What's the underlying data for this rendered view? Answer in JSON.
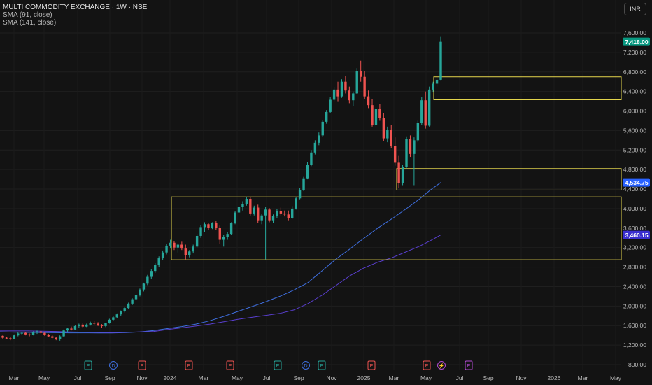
{
  "header": {
    "title": "MULTI COMMODITY EXCHANGE · 1W · NSE",
    "sma1_label": "SMA (91, close)",
    "sma2_label": "SMA (141, close)",
    "currency": "INR"
  },
  "colors": {
    "up": "#26a69a",
    "down": "#ef5350",
    "sma91": "#3f6fe0",
    "sma141": "#5a3fd1",
    "box": "#e3d44c",
    "price_badge": "#089981",
    "sma91_badge": "#2962ff",
    "sma141_badge": "#3a2fd0"
  },
  "chart_data": {
    "type": "candlestick",
    "y_ticks": [
      "7,600.00",
      "7,200.00",
      "6,800.00",
      "6,400.00",
      "6,000.00",
      "5,600.00",
      "5,200.00",
      "4,800.00",
      "4,400.00",
      "4,000.00",
      "3,600.00",
      "3,200.00",
      "2,800.00",
      "2,400.00",
      "2,000.00",
      "1,600.00",
      "1,200.00",
      "800.00"
    ],
    "x_ticks": [
      "Mar",
      "May",
      "Jul",
      "Sep",
      "Nov",
      "2024",
      "Mar",
      "May",
      "Jul",
      "Sep",
      "Nov",
      "2025",
      "Mar",
      "May",
      "Jul",
      "Sep",
      "Nov",
      "2026",
      "Mar",
      "May"
    ],
    "price_labels": [
      {
        "text": "7,418.00",
        "value": 7418,
        "color": "#089981"
      },
      {
        "text": "4,534.75",
        "value": 4534.75,
        "color": "#2962ff"
      },
      {
        "text": "3,460.15",
        "value": 3460.15,
        "color": "#3a2fd0"
      }
    ],
    "boxes": [
      {
        "from": "Jan 2024",
        "to": "Jun 2025",
        "high": 4240,
        "low": 2950
      },
      {
        "from": "Mar 2025",
        "to": "Jun 2025",
        "high": 4820,
        "low": 4380
      },
      {
        "from": "Jun 2025",
        "to": "Jun 2025",
        "high": 6700,
        "low": 6230
      }
    ],
    "event_markers": [
      {
        "label": "E",
        "type": "earnings"
      },
      {
        "label": "D",
        "type": "dividend"
      },
      {
        "label": "E",
        "type": "earnings"
      },
      {
        "label": "E",
        "type": "earnings"
      },
      {
        "label": "E",
        "type": "earnings"
      },
      {
        "label": "E",
        "type": "earnings"
      },
      {
        "label": "D",
        "type": "dividend"
      },
      {
        "label": "E",
        "type": "earnings"
      },
      {
        "label": "E",
        "type": "earnings"
      },
      {
        "label": "E",
        "type": "earnings"
      },
      {
        "label": "⚡",
        "type": "split"
      },
      {
        "label": "E",
        "type": "earnings"
      }
    ],
    "candles": [
      [
        1390,
        1400,
        1330,
        1350
      ],
      [
        1350,
        1370,
        1320,
        1340
      ],
      [
        1340,
        1360,
        1300,
        1330
      ],
      [
        1330,
        1420,
        1320,
        1400
      ],
      [
        1400,
        1460,
        1380,
        1440
      ],
      [
        1440,
        1470,
        1410,
        1450
      ],
      [
        1450,
        1470,
        1400,
        1420
      ],
      [
        1420,
        1440,
        1380,
        1410
      ],
      [
        1410,
        1480,
        1400,
        1460
      ],
      [
        1460,
        1500,
        1430,
        1480
      ],
      [
        1480,
        1490,
        1430,
        1450
      ],
      [
        1450,
        1460,
        1390,
        1410
      ],
      [
        1410,
        1430,
        1360,
        1380
      ],
      [
        1380,
        1400,
        1340,
        1350
      ],
      [
        1350,
        1370,
        1300,
        1320
      ],
      [
        1320,
        1400,
        1290,
        1380
      ],
      [
        1380,
        1520,
        1370,
        1500
      ],
      [
        1500,
        1560,
        1470,
        1540
      ],
      [
        1540,
        1580,
        1500,
        1520
      ],
      [
        1520,
        1610,
        1510,
        1590
      ],
      [
        1590,
        1640,
        1560,
        1620
      ],
      [
        1620,
        1650,
        1560,
        1580
      ],
      [
        1580,
        1640,
        1570,
        1620
      ],
      [
        1620,
        1680,
        1600,
        1660
      ],
      [
        1660,
        1700,
        1610,
        1640
      ],
      [
        1640,
        1670,
        1590,
        1610
      ],
      [
        1610,
        1630,
        1560,
        1590
      ],
      [
        1590,
        1660,
        1570,
        1650
      ],
      [
        1650,
        1740,
        1640,
        1720
      ],
      [
        1720,
        1790,
        1700,
        1770
      ],
      [
        1770,
        1850,
        1750,
        1830
      ],
      [
        1830,
        1910,
        1800,
        1890
      ],
      [
        1890,
        1980,
        1870,
        1960
      ],
      [
        1960,
        2070,
        1940,
        2050
      ],
      [
        2050,
        2160,
        2020,
        2140
      ],
      [
        2140,
        2260,
        2110,
        2230
      ],
      [
        2230,
        2360,
        2200,
        2340
      ],
      [
        2340,
        2480,
        2300,
        2460
      ],
      [
        2460,
        2640,
        2430,
        2600
      ],
      [
        2600,
        2760,
        2560,
        2720
      ],
      [
        2720,
        2880,
        2680,
        2840
      ],
      [
        2840,
        3020,
        2800,
        2980
      ],
      [
        2980,
        3140,
        2950,
        3100
      ],
      [
        3100,
        3280,
        3060,
        3240
      ],
      [
        3240,
        3360,
        3180,
        3300
      ],
      [
        3300,
        3330,
        3150,
        3200
      ],
      [
        3200,
        3290,
        3100,
        3260
      ],
      [
        3260,
        3320,
        3150,
        3180
      ],
      [
        3180,
        3260,
        2960,
        3040
      ],
      [
        3040,
        3150,
        3000,
        3120
      ],
      [
        3120,
        3260,
        3080,
        3220
      ],
      [
        3220,
        3480,
        3200,
        3440
      ],
      [
        3440,
        3660,
        3400,
        3620
      ],
      [
        3620,
        3720,
        3520,
        3680
      ],
      [
        3680,
        3700,
        3560,
        3600
      ],
      [
        3600,
        3720,
        3580,
        3700
      ],
      [
        3700,
        3740,
        3560,
        3600
      ],
      [
        3600,
        3650,
        3280,
        3360
      ],
      [
        3360,
        3460,
        3220,
        3420
      ],
      [
        3420,
        3520,
        3360,
        3480
      ],
      [
        3480,
        3720,
        3460,
        3700
      ],
      [
        3700,
        3950,
        3680,
        3920
      ],
      [
        3920,
        4060,
        3880,
        4030
      ],
      [
        4030,
        4150,
        3960,
        4100
      ],
      [
        4100,
        4230,
        4060,
        4200
      ],
      [
        4200,
        4230,
        3860,
        3900
      ],
      [
        3900,
        4060,
        3860,
        4020
      ],
      [
        4020,
        4080,
        3700,
        3760
      ],
      [
        3760,
        3890,
        3680,
        3860
      ],
      [
        3860,
        4030,
        2960,
        3980
      ],
      [
        3980,
        4010,
        3720,
        3760
      ],
      [
        3760,
        3880,
        3700,
        3850
      ],
      [
        3850,
        3990,
        3810,
        3950
      ],
      [
        3950,
        4020,
        3860,
        3900
      ],
      [
        3900,
        3960,
        3840,
        3880
      ],
      [
        3880,
        3960,
        3760,
        3800
      ],
      [
        3800,
        4050,
        3790,
        4000
      ],
      [
        4000,
        4240,
        3980,
        4210
      ],
      [
        4210,
        4420,
        4190,
        4380
      ],
      [
        4380,
        4650,
        4360,
        4620
      ],
      [
        4620,
        4950,
        4600,
        4900
      ],
      [
        4900,
        5200,
        4870,
        5150
      ],
      [
        5150,
        5400,
        5110,
        5350
      ],
      [
        5350,
        5560,
        5300,
        5500
      ],
      [
        5500,
        5820,
        5470,
        5780
      ],
      [
        5780,
        6020,
        5740,
        5980
      ],
      [
        5980,
        6280,
        5950,
        6230
      ],
      [
        6230,
        6480,
        6200,
        6440
      ],
      [
        6440,
        6600,
        6200,
        6300
      ],
      [
        6300,
        6650,
        6270,
        6600
      ],
      [
        6600,
        6720,
        6360,
        6420
      ],
      [
        6420,
        6500,
        6160,
        6220
      ],
      [
        6220,
        6400,
        6100,
        6360
      ],
      [
        6360,
        6880,
        6340,
        6820
      ],
      [
        6820,
        7030,
        6600,
        6700
      ],
      [
        6700,
        6820,
        6240,
        6300
      ],
      [
        6300,
        6420,
        6060,
        6120
      ],
      [
        6120,
        6240,
        5680,
        5720
      ],
      [
        5720,
        6080,
        5660,
        6040
      ],
      [
        6040,
        6140,
        5800,
        5860
      ],
      [
        5860,
        5960,
        5380,
        5440
      ],
      [
        5440,
        5680,
        5360,
        5620
      ],
      [
        5620,
        5720,
        5240,
        5280
      ],
      [
        5280,
        5460,
        4880,
        4940
      ],
      [
        4940,
        5080,
        4420,
        4520
      ],
      [
        4520,
        4900,
        4480,
        4860
      ],
      [
        4860,
        5480,
        4820,
        5420
      ],
      [
        5420,
        5500,
        5060,
        5120
      ],
      [
        5120,
        5460,
        4480,
        5400
      ],
      [
        5400,
        5800,
        5360,
        5760
      ],
      [
        5760,
        6280,
        5720,
        6220
      ],
      [
        6220,
        6400,
        5640,
        5700
      ],
      [
        5700,
        6500,
        5680,
        6440
      ],
      [
        6440,
        6600,
        6380,
        6560
      ],
      [
        6560,
        6720,
        6500,
        6640
      ],
      [
        6640,
        7520,
        6620,
        7418
      ]
    ],
    "sma91": [
      [
        0,
        1470
      ],
      [
        20,
        1465
      ],
      [
        40,
        1462
      ],
      [
        60,
        1458
      ],
      [
        80,
        1454
      ],
      [
        100,
        1452
      ],
      [
        120,
        1452
      ],
      [
        140,
        1450
      ],
      [
        160,
        1450
      ],
      [
        180,
        1455
      ],
      [
        200,
        1470
      ],
      [
        220,
        1500
      ],
      [
        240,
        1540
      ],
      [
        260,
        1580
      ],
      [
        280,
        1630
      ],
      [
        300,
        1700
      ],
      [
        320,
        1790
      ],
      [
        340,
        1890
      ],
      [
        360,
        1990
      ],
      [
        380,
        2090
      ],
      [
        400,
        2200
      ],
      [
        420,
        2330
      ],
      [
        440,
        2480
      ],
      [
        460,
        2720
      ],
      [
        480,
        2960
      ],
      [
        500,
        3170
      ],
      [
        520,
        3390
      ],
      [
        540,
        3600
      ],
      [
        560,
        3790
      ],
      [
        580,
        3990
      ],
      [
        600,
        4200
      ],
      [
        615,
        4380
      ],
      [
        630,
        4534.75
      ]
    ],
    "sma141": [
      [
        0,
        1490
      ],
      [
        40,
        1490
      ],
      [
        80,
        1480
      ],
      [
        100,
        1472
      ],
      [
        120,
        1465
      ],
      [
        160,
        1455
      ],
      [
        200,
        1470
      ],
      [
        220,
        1480
      ],
      [
        240,
        1520
      ],
      [
        260,
        1555
      ],
      [
        280,
        1590
      ],
      [
        300,
        1630
      ],
      [
        320,
        1680
      ],
      [
        340,
        1730
      ],
      [
        360,
        1770
      ],
      [
        380,
        1810
      ],
      [
        400,
        1850
      ],
      [
        420,
        1920
      ],
      [
        440,
        2050
      ],
      [
        460,
        2220
      ],
      [
        480,
        2420
      ],
      [
        500,
        2620
      ],
      [
        520,
        2780
      ],
      [
        540,
        2900
      ],
      [
        560,
        2990
      ],
      [
        580,
        3110
      ],
      [
        600,
        3230
      ],
      [
        615,
        3340
      ],
      [
        630,
        3460.15
      ]
    ]
  }
}
